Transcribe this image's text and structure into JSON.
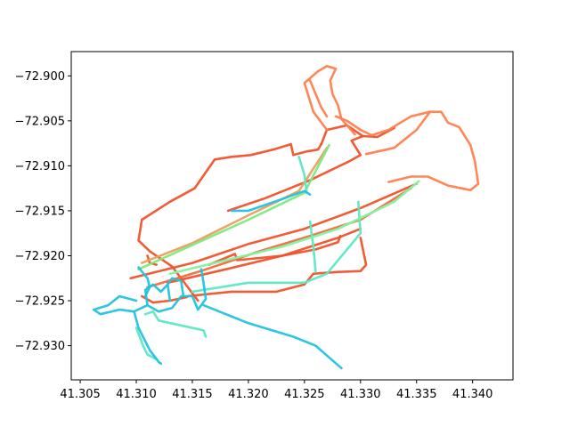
{
  "chart_data": {
    "type": "line",
    "title": "",
    "xlabel": "",
    "ylabel": "",
    "xlim": [
      41.3042,
      41.3436
    ],
    "ylim": [
      -72.9338,
      -72.8973
    ],
    "grid": false,
    "legend": "none",
    "x_ticks": [
      {
        "value": 41.305,
        "label": "41.305"
      },
      {
        "value": 41.31,
        "label": "41.310"
      },
      {
        "value": 41.315,
        "label": "41.315"
      },
      {
        "value": 41.32,
        "label": "41.320"
      },
      {
        "value": 41.325,
        "label": "41.325"
      },
      {
        "value": 41.33,
        "label": "41.330"
      },
      {
        "value": 41.335,
        "label": "41.335"
      },
      {
        "value": 41.34,
        "label": "41.340"
      }
    ],
    "y_ticks": [
      {
        "value": -72.9,
        "label": "−72.900"
      },
      {
        "value": -72.905,
        "label": "−72.905"
      },
      {
        "value": -72.91,
        "label": "−72.910"
      },
      {
        "value": -72.915,
        "label": "−72.915"
      },
      {
        "value": -72.92,
        "label": "−72.920"
      },
      {
        "value": -72.925,
        "label": "−72.925"
      },
      {
        "value": -72.93,
        "label": "−72.930"
      }
    ],
    "series": [
      {
        "color": "#f0522a",
        "points": [
          [
            41.3155,
            -72.925
          ],
          [
            41.3132,
            -72.9212
          ],
          [
            41.3112,
            -72.9195
          ],
          [
            41.3102,
            -72.9183
          ],
          [
            41.3105,
            -72.916
          ],
          [
            41.313,
            -72.914
          ],
          [
            41.3152,
            -72.9125
          ],
          [
            41.317,
            -72.9093
          ],
          [
            41.3185,
            -72.909
          ],
          [
            41.3202,
            -72.9088
          ],
          [
            41.3222,
            -72.9082
          ],
          [
            41.3238,
            -72.9076
          ],
          [
            41.324,
            -72.9088
          ],
          [
            41.3252,
            -72.9084
          ],
          [
            41.3262,
            -72.9082
          ],
          [
            41.3265,
            -72.9076
          ]
        ]
      },
      {
        "color": "#f0522a",
        "points": [
          [
            41.3095,
            -72.9225
          ],
          [
            41.315,
            -72.9208
          ],
          [
            41.32,
            -72.9187
          ],
          [
            41.325,
            -72.917
          ],
          [
            41.33,
            -72.9147
          ],
          [
            41.335,
            -72.912
          ]
        ]
      },
      {
        "color": "#f0522a",
        "points": [
          [
            41.3128,
            -72.923
          ],
          [
            41.318,
            -72.9215
          ],
          [
            41.323,
            -72.92
          ],
          [
            41.328,
            -72.918
          ],
          [
            41.33,
            -72.917
          ]
        ]
      },
      {
        "color": "#f0522a",
        "points": [
          [
            41.3165,
            -72.921
          ],
          [
            41.3188,
            -72.9198
          ],
          [
            41.319,
            -72.9205
          ],
          [
            41.323,
            -72.92
          ],
          [
            41.326,
            -72.9193
          ],
          [
            41.328,
            -72.9185
          ],
          [
            41.3282,
            -72.9178
          ]
        ]
      },
      {
        "color": "#f0522a",
        "points": [
          [
            41.3145,
            -72.9245
          ],
          [
            41.3185,
            -72.924
          ],
          [
            41.3225,
            -72.924
          ],
          [
            41.325,
            -72.9232
          ],
          [
            41.3258,
            -72.922
          ],
          [
            41.328,
            -72.9218
          ],
          [
            41.33,
            -72.9217
          ],
          [
            41.3305,
            -72.921
          ],
          [
            41.33,
            -72.918
          ]
        ]
      },
      {
        "color": "#f0522a",
        "points": [
          [
            41.3182,
            -72.915
          ],
          [
            41.3215,
            -72.9136
          ],
          [
            41.3255,
            -72.9116
          ],
          [
            41.329,
            -72.9095
          ],
          [
            41.33,
            -72.9088
          ],
          [
            41.3292,
            -72.9072
          ],
          [
            41.3302,
            -72.9067
          ],
          [
            41.3315,
            -72.9068
          ],
          [
            41.333,
            -72.9058
          ]
        ]
      },
      {
        "color": "#f0522a",
        "points": [
          [
            41.3265,
            -72.9076
          ],
          [
            41.327,
            -72.906
          ],
          [
            41.3288,
            -72.9055
          ],
          [
            41.3302,
            -72.9067
          ]
        ]
      },
      {
        "color": "#f0522a",
        "points": [
          [
            41.311,
            -72.92
          ],
          [
            41.3112,
            -72.9208
          ],
          [
            41.3118,
            -72.921
          ]
        ]
      },
      {
        "color": "#f0522a",
        "points": [
          [
            41.3105,
            -72.9245
          ],
          [
            41.3115,
            -72.9252
          ],
          [
            41.313,
            -72.925
          ],
          [
            41.3145,
            -72.9246
          ]
        ]
      },
      {
        "color": "#ff7f50",
        "points": [
          [
            41.327,
            -72.906
          ],
          [
            41.3258,
            -72.904
          ],
          [
            41.325,
            -72.9008
          ],
          [
            41.3262,
            -72.8995
          ],
          [
            41.327,
            -72.8989
          ],
          [
            41.3278,
            -72.8992
          ],
          [
            41.3273,
            -72.9005
          ],
          [
            41.3275,
            -72.902
          ],
          [
            41.328,
            -72.9033
          ],
          [
            41.3283,
            -72.9048
          ],
          [
            41.3295,
            -72.9065
          ]
        ]
      },
      {
        "color": "#ff7f50",
        "points": [
          [
            41.3278,
            -72.9045
          ],
          [
            41.3288,
            -72.905
          ],
          [
            41.33,
            -72.906
          ],
          [
            41.331,
            -72.9066
          ],
          [
            41.3325,
            -72.906
          ],
          [
            41.3345,
            -72.9045
          ],
          [
            41.3362,
            -72.904
          ],
          [
            41.3372,
            -72.904
          ],
          [
            41.3378,
            -72.9052
          ],
          [
            41.3388,
            -72.9057
          ],
          [
            41.3398,
            -72.9077
          ],
          [
            41.3402,
            -72.9095
          ],
          [
            41.3405,
            -72.912
          ],
          [
            41.3398,
            -72.9127
          ],
          [
            41.3378,
            -72.9122
          ],
          [
            41.336,
            -72.9112
          ],
          [
            41.3345,
            -72.9112
          ],
          [
            41.3325,
            -72.9118
          ]
        ]
      },
      {
        "color": "#ff7f50",
        "points": [
          [
            41.3362,
            -72.904
          ],
          [
            41.335,
            -72.906
          ],
          [
            41.333,
            -72.908
          ],
          [
            41.3305,
            -72.9087
          ]
        ]
      },
      {
        "color": "#ff7f50",
        "points": [
          [
            41.3255,
            -72.9005
          ],
          [
            41.326,
            -72.902
          ],
          [
            41.3265,
            -72.9035
          ],
          [
            41.327,
            -72.9045
          ]
        ]
      },
      {
        "color": "#f56a3d",
        "points": [
          [
            41.311,
            -72.9235
          ],
          [
            41.316,
            -72.9216
          ],
          [
            41.321,
            -72.9195
          ],
          [
            41.3255,
            -72.9178
          ],
          [
            41.33,
            -72.916
          ],
          [
            41.3345,
            -72.9125
          ]
        ]
      },
      {
        "color": "#e8a060",
        "points": [
          [
            41.3105,
            -72.9208
          ],
          [
            41.315,
            -72.9186
          ],
          [
            41.32,
            -72.9155
          ],
          [
            41.3245,
            -72.9128
          ],
          [
            41.327,
            -72.908
          ]
        ]
      },
      {
        "color": "#7ee87e",
        "points": [
          [
            41.3102,
            -72.9215
          ],
          [
            41.315,
            -72.9188
          ],
          [
            41.32,
            -72.916
          ],
          [
            41.325,
            -72.913
          ],
          [
            41.3272,
            -72.9077
          ]
        ]
      },
      {
        "color": "#5be8c2",
        "points": [
          [
            41.315,
            -72.924
          ],
          [
            41.32,
            -72.923
          ],
          [
            41.325,
            -72.923
          ],
          [
            41.327,
            -72.922
          ],
          [
            41.33,
            -72.9175
          ],
          [
            41.3298,
            -72.914
          ]
        ]
      },
      {
        "color": "#5be8c2",
        "points": [
          [
            41.3255,
            -72.9162
          ],
          [
            41.3258,
            -72.919
          ],
          [
            41.326,
            -72.9218
          ]
        ]
      },
      {
        "color": "#5be8c2",
        "points": [
          [
            41.3252,
            -72.913
          ],
          [
            41.325,
            -72.911
          ],
          [
            41.3245,
            -72.909
          ]
        ]
      },
      {
        "color": "#5be8c2",
        "points": [
          [
            41.3108,
            -72.9265
          ],
          [
            41.3115,
            -72.9262
          ],
          [
            41.312,
            -72.9272
          ],
          [
            41.316,
            -72.9283
          ],
          [
            41.3162,
            -72.929
          ]
        ]
      },
      {
        "color": "#5be8c2",
        "points": [
          [
            41.31,
            -72.928
          ],
          [
            41.3106,
            -72.93
          ],
          [
            41.311,
            -72.931
          ],
          [
            41.3118,
            -72.9315
          ]
        ]
      },
      {
        "color": "#7ef59e",
        "points": [
          [
            41.313,
            -72.922
          ],
          [
            41.318,
            -72.9205
          ],
          [
            41.323,
            -72.919
          ],
          [
            41.328,
            -72.917
          ],
          [
            41.333,
            -72.914
          ],
          [
            41.3352,
            -72.9117
          ]
        ]
      },
      {
        "color": "#22c2e0",
        "points": [
          [
            41.316,
            -72.9255
          ],
          [
            41.32,
            -72.9275
          ],
          [
            41.324,
            -72.929
          ],
          [
            41.326,
            -72.93
          ],
          [
            41.3283,
            -72.9325
          ]
        ]
      },
      {
        "color": "#22c2e0",
        "points": [
          [
            41.31,
            -72.925
          ],
          [
            41.3085,
            -72.9245
          ],
          [
            41.3075,
            -72.9255
          ],
          [
            41.3062,
            -72.926
          ],
          [
            41.3068,
            -72.9265
          ],
          [
            41.3085,
            -72.926
          ],
          [
            41.3098,
            -72.9262
          ]
        ]
      },
      {
        "color": "#22c2e0",
        "points": [
          [
            41.3098,
            -72.9262
          ],
          [
            41.3102,
            -72.928
          ],
          [
            41.3108,
            -72.9295
          ],
          [
            41.3112,
            -72.9305
          ],
          [
            41.312,
            -72.9318
          ],
          [
            41.3122,
            -72.932
          ]
        ]
      },
      {
        "color": "#22c2e0",
        "points": [
          [
            41.3098,
            -72.9262
          ],
          [
            41.311,
            -72.9255
          ],
          [
            41.312,
            -72.9262
          ],
          [
            41.3132,
            -72.9258
          ],
          [
            41.314,
            -72.9245
          ],
          [
            41.315,
            -72.9245
          ],
          [
            41.3155,
            -72.926
          ],
          [
            41.3162,
            -72.9248
          ],
          [
            41.316,
            -72.923
          ],
          [
            41.3158,
            -72.9215
          ]
        ]
      },
      {
        "color": "#22c2e0",
        "points": [
          [
            41.311,
            -72.9255
          ],
          [
            41.3108,
            -72.9238
          ],
          [
            41.3115,
            -72.9232
          ],
          [
            41.3122,
            -72.924
          ],
          [
            41.3128,
            -72.9232
          ],
          [
            41.313,
            -72.925
          ]
        ]
      },
      {
        "color": "#22c2e0",
        "points": [
          [
            41.3128,
            -72.9232
          ],
          [
            41.3132,
            -72.9225
          ],
          [
            41.314,
            -72.9228
          ],
          [
            41.3142,
            -72.9245
          ]
        ]
      },
      {
        "color": "#22c2e0",
        "points": [
          [
            41.3185,
            -72.915
          ],
          [
            41.32,
            -72.915
          ],
          [
            41.323,
            -72.9137
          ],
          [
            41.325,
            -72.9128
          ],
          [
            41.3255,
            -72.9132
          ]
        ]
      },
      {
        "color": "#22c2e0",
        "points": [
          [
            41.3102,
            -72.9213
          ],
          [
            41.311,
            -72.9225
          ],
          [
            41.3112,
            -72.9235
          ],
          [
            41.3108,
            -72.9245
          ]
        ]
      }
    ]
  }
}
